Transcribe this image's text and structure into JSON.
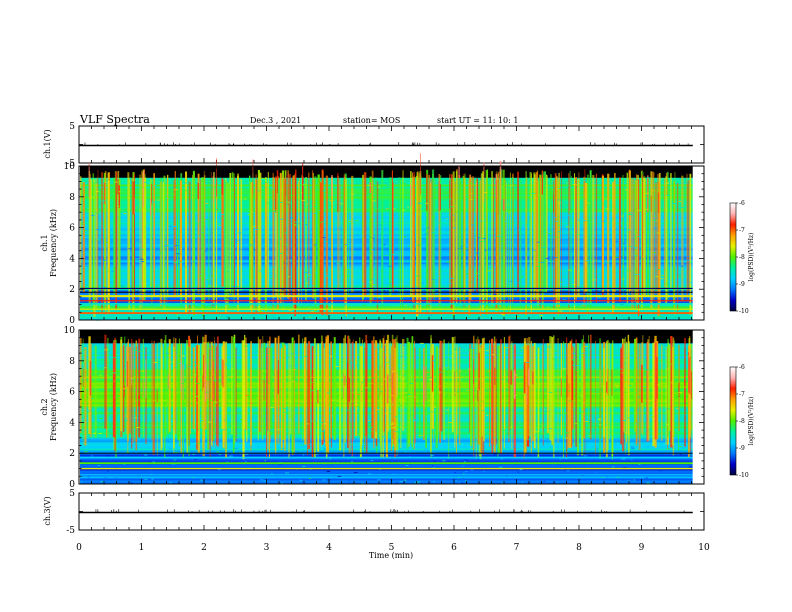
{
  "header": {
    "title": "VLF Spectra",
    "date": "Dec.3  , 2021",
    "station": "station= MOS",
    "start": "start  UT =   11: 10: 1"
  },
  "colors": {
    "colormap": [
      "#000040",
      "#0000c8",
      "#0078ff",
      "#00d2ff",
      "#00f0a0",
      "#50f000",
      "#e6f000",
      "#ffa000",
      "#ff1e00",
      "#ffb4b4",
      "#ffffff"
    ]
  },
  "chart_data": [
    {
      "type": "line",
      "id": "ch1v",
      "ylabel": "ch.1(V)",
      "ylim": [
        -5,
        5
      ],
      "yticks": [
        5,
        -5
      ],
      "xlim": [
        0,
        10
      ],
      "x": [
        0,
        9.82
      ],
      "y": [
        0,
        0
      ]
    },
    {
      "type": "heatmap",
      "id": "ch1",
      "ylabel": "ch.1\nFrequency  (kHz)",
      "ylabel_lines": [
        "ch.1",
        "Frequency  (kHz)"
      ],
      "ylim": [
        0,
        10
      ],
      "yticks": [
        0,
        2,
        4,
        6,
        8,
        10
      ],
      "xlim": [
        0,
        10
      ],
      "data_xmax": 9.82,
      "colorbar": {
        "label": "log(PSD)(V²/Hz)",
        "range": [
          -10,
          -6
        ],
        "ticks": [
          "-6",
          "-7",
          "-8",
          "-9",
          "-10"
        ]
      }
    },
    {
      "type": "heatmap",
      "id": "ch2",
      "ylabel": "ch.2\nFrequency  (kHz)",
      "ylabel_lines": [
        "ch.2",
        "Frequency  (kHz)"
      ],
      "ylim": [
        0,
        10
      ],
      "yticks": [
        0,
        2,
        4,
        6,
        8,
        10
      ],
      "xlim": [
        0,
        10
      ],
      "data_xmax": 9.82,
      "colorbar": {
        "label": "log(PSD)(V²/Hz)",
        "range": [
          -10,
          -6
        ],
        "ticks": [
          "-6",
          "-7",
          "-8",
          "-9",
          "-10"
        ]
      }
    },
    {
      "type": "line",
      "id": "ch3v",
      "ylabel": "ch.3(V)",
      "ylim": [
        -5,
        5
      ],
      "yticks": [
        5,
        -5
      ],
      "xlim": [
        0,
        10
      ],
      "xticks": [
        0,
        1,
        2,
        3,
        4,
        5,
        6,
        7,
        8,
        9,
        10
      ],
      "xlabel": "Time  (min)",
      "x": [
        0,
        9.82
      ],
      "y": [
        0,
        0
      ]
    }
  ]
}
